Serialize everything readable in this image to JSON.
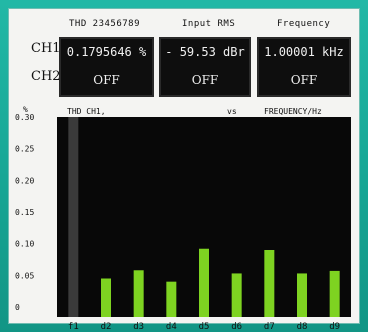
{
  "headers": {
    "thd": "THD 23456789",
    "input": "Input RMS",
    "frequency": "Frequency"
  },
  "channels": {
    "ch1": "CH1",
    "ch2": "CH2"
  },
  "readouts": {
    "thd_ch1": "0.1795646 %",
    "thd_ch2": "OFF",
    "input_ch1": "- 59.53 dBr",
    "input_ch2": "OFF",
    "freq_ch1": "1.00001 kHz",
    "freq_ch2": "OFF"
  },
  "chart_title": {
    "y_unit": "%",
    "left": "THD   CH1,",
    "vs": "vs",
    "right": "FREQUENCY/Hz"
  },
  "chart_data": {
    "type": "bar",
    "categories": [
      "f1",
      "d2",
      "d3",
      "d4",
      "d5",
      "d6",
      "d7",
      "d8",
      "d9"
    ],
    "values": [
      0.3,
      0.045,
      0.058,
      0.04,
      0.092,
      0.053,
      0.09,
      0.053,
      0.057
    ],
    "ylim": [
      0,
      0.3
    ],
    "yticks": [
      "0.30",
      "0.25",
      "0.20",
      "0.15",
      "0.10",
      "0.05",
      "0"
    ],
    "bar_color": "#7ed321",
    "fundamental_color": "#3a3a3a",
    "background": "#080808"
  }
}
